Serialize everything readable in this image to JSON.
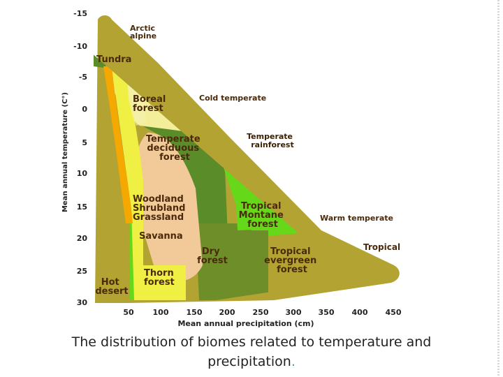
{
  "y_axis": {
    "title": "Mean annual temperature (C°)",
    "ticks": [
      "-15",
      "-10",
      "-5",
      "0",
      "5",
      "10",
      "15",
      "20",
      "25",
      "30"
    ]
  },
  "x_axis": {
    "title": "Mean annual precipitation (cm)",
    "ticks": [
      "50",
      "100",
      "150",
      "200",
      "250",
      "300",
      "350",
      "400",
      "450"
    ]
  },
  "zones": {
    "arctic": [
      "Arctic",
      "alpine"
    ],
    "cold_temperate": "Cold temperate",
    "warm_temperate": "Warm temperate",
    "tropical": "Tropical"
  },
  "biomes": {
    "tundra": "Tundra",
    "boreal": [
      "Boreal",
      "forest"
    ],
    "temperate_deciduous": [
      "Temperate",
      "deciduous",
      "forest"
    ],
    "temperate_rainforest": [
      "Temperate",
      "rainforest"
    ],
    "woodland": [
      "Woodland",
      "Shrubland",
      "Grassland"
    ],
    "tropical_montane": [
      "Tropical",
      "Montane",
      "forest"
    ],
    "savanna": "Savanna",
    "dry_forest": [
      "Dry",
      "forest"
    ],
    "tropical_evergreen": [
      "Tropical",
      "evergreen",
      "forest"
    ],
    "thorn_forest": [
      "Thorn",
      "forest"
    ],
    "hot_desert": [
      "Hot",
      "desert"
    ]
  },
  "caption": {
    "line1": "The distribution of biomes related to temperature and",
    "line2": "precipitation",
    "period": "."
  },
  "colors": {
    "olive": "#b3a332",
    "dark_green": "#5a8c2a",
    "bright_green": "#66d81a",
    "pale_yellow": "#f3ee9a",
    "yellow": "#f0f044",
    "peach": "#f2ca9a",
    "orange": "#f5a800"
  }
}
